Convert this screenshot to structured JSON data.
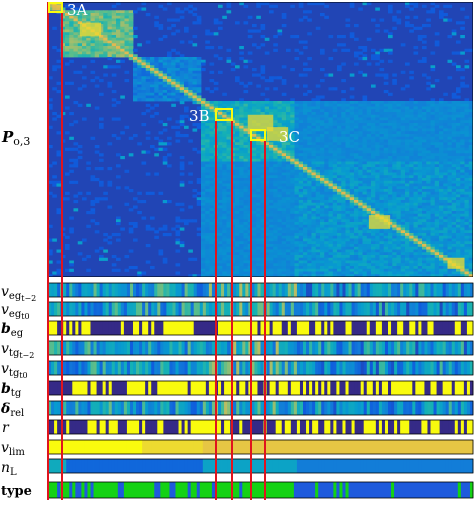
{
  "chart_data": {
    "type": "heatmap",
    "title": "",
    "matrix": {
      "label": "P_{o,3}",
      "colormap": "parula",
      "value_range": [
        0,
        1
      ],
      "blocks": [
        {
          "range": [
            0.0,
            0.03
          ],
          "level": 0.85
        },
        {
          "range": [
            0.03,
            0.2
          ],
          "level": 0.72
        },
        {
          "range": [
            0.2,
            0.36
          ],
          "level": 0.32
        },
        {
          "range": [
            0.36,
            0.58
          ],
          "level": 0.55
        },
        {
          "range": [
            0.58,
            1.0
          ],
          "level": 0.42
        }
      ],
      "diagonal_level": 0.9,
      "background_level": 0.08
    },
    "annotations": [
      {
        "text": "3A"
      },
      {
        "text": "3B"
      },
      {
        "text": "3C"
      }
    ],
    "tracks": [
      {
        "label": "v_{eg,t-2}",
        "kind": "continuous"
      },
      {
        "label": "v_{eg,t0}",
        "kind": "continuous"
      },
      {
        "label": "b_eg",
        "kind": "binary"
      },
      {
        "label": "v_{tg,t-2}",
        "kind": "continuous"
      },
      {
        "label": "v_{tg,t0}",
        "kind": "continuous"
      },
      {
        "label": "b_tg",
        "kind": "binary"
      },
      {
        "label": "δ_rel",
        "kind": "continuous"
      },
      {
        "label": "r",
        "kind": "binary"
      },
      {
        "label": "v_lim",
        "kind": "levels"
      },
      {
        "label": "n_L",
        "kind": "levels"
      },
      {
        "label": "type",
        "kind": "category"
      }
    ],
    "highlight_line_color": "#e0141e",
    "category_colors": {
      "green": "#14d214",
      "blue": "#1e5adc"
    }
  },
  "labels": {
    "matrix_label_main": "P",
    "matrix_label_sub": "o,3",
    "ann_3a": "3A",
    "ann_3b": "3B",
    "ann_3c": "3C",
    "t1_main": "v",
    "t1_sub": "eg",
    "t1_subsub": "t−2",
    "t2_main": "v",
    "t2_sub": "eg",
    "t2_subsub": "t0",
    "t3_main": "b",
    "t3_sub": "eg",
    "t4_main": "v",
    "t4_sub": "tg",
    "t4_subsub": "t−2",
    "t5_main": "v",
    "t5_sub": "tg",
    "t5_subsub": "t0",
    "t6_main": "b",
    "t6_sub": "tg",
    "t7_main": "δ",
    "t7_sub": "rel",
    "t8_main": "r",
    "t9_main": "v",
    "t9_sub": "lim",
    "t10_main": "n",
    "t10_sub": "L",
    "t11_main": "type"
  }
}
